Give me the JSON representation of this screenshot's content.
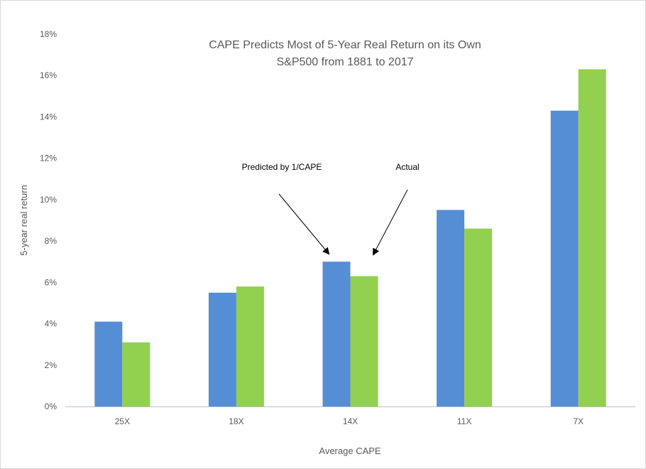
{
  "chart_data": {
    "type": "bar",
    "title": "CAPE Predicts Most of 5-Year Real Return on its Own",
    "subtitle": "S&P500 from 1881 to 2017",
    "xlabel": "Average CAPE",
    "ylabel": "5-year real return",
    "categories": [
      "25X",
      "18X",
      "14X",
      "11X",
      "7X"
    ],
    "series": [
      {
        "values": [
          4.1,
          5.5,
          7.0,
          9.5,
          14.3
        ],
        "color": "#558ED5"
      },
      {
        "values": [
          3.1,
          5.8,
          6.3,
          8.6,
          16.3
        ],
        "color": "#92D050"
      }
    ],
    "ylim": [
      0,
      18
    ],
    "yticks": [
      "0%",
      "2%",
      "4%",
      "6%",
      "8%",
      "10%",
      "12%",
      "14%",
      "16%",
      "18%"
    ],
    "grid": false,
    "legend": "none",
    "annotations": [
      {
        "text": "Predicted by 1/CAPE",
        "target_category": "14X",
        "target_series": 0
      },
      {
        "text": "Actual",
        "target_category": "14X",
        "target_series": 1
      }
    ]
  }
}
